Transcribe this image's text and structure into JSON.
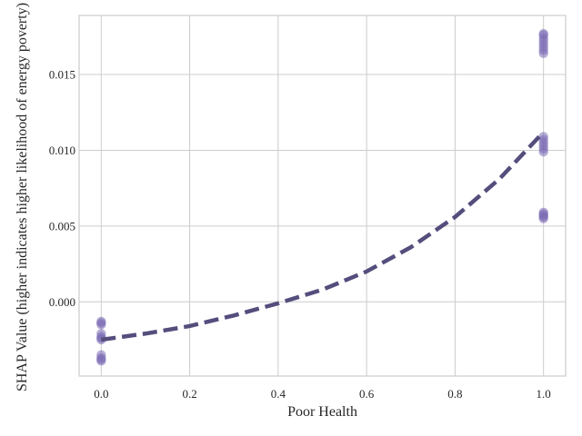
{
  "chart_data": {
    "type": "scatter",
    "title": "",
    "xlabel": "Poor Health",
    "ylabel": "SHAP Value (higher indicates higher likelihood of energy poverty)",
    "xlim": [
      -0.05,
      1.05
    ],
    "ylim": [
      -0.0049,
      0.0189
    ],
    "x_ticks": [
      0.0,
      0.2,
      0.4,
      0.6,
      0.8,
      1.0
    ],
    "x_tick_labels": [
      "0.0",
      "0.2",
      "0.4",
      "0.6",
      "0.8",
      "1.0"
    ],
    "y_ticks": [
      0.0,
      0.005,
      0.01,
      0.015
    ],
    "y_tick_labels": [
      "0.000",
      "0.005",
      "0.010",
      "0.015"
    ],
    "grid": true,
    "legend": "none",
    "series": [
      {
        "kind": "points",
        "color": "#7b6cb5",
        "points": [
          {
            "x": 0.0,
            "y": -0.0014
          },
          {
            "x": 0.0,
            "y": -0.0015
          },
          {
            "x": 0.0,
            "y": -0.0013
          },
          {
            "x": 0.0,
            "y": -0.0021
          },
          {
            "x": 0.0,
            "y": -0.0023
          },
          {
            "x": 0.0,
            "y": -0.0024
          },
          {
            "x": 0.0,
            "y": -0.0025
          },
          {
            "x": 0.0,
            "y": -0.0035
          },
          {
            "x": 0.0,
            "y": -0.0037
          },
          {
            "x": 0.0,
            "y": -0.0038
          },
          {
            "x": 0.0,
            "y": -0.0039
          },
          {
            "x": 1.0,
            "y": 0.0055
          },
          {
            "x": 1.0,
            "y": 0.0056
          },
          {
            "x": 1.0,
            "y": 0.0057
          },
          {
            "x": 1.0,
            "y": 0.0058
          },
          {
            "x": 1.0,
            "y": 0.0059
          },
          {
            "x": 1.0,
            "y": 0.0099
          },
          {
            "x": 1.0,
            "y": 0.0101
          },
          {
            "x": 1.0,
            "y": 0.0103
          },
          {
            "x": 1.0,
            "y": 0.0105
          },
          {
            "x": 1.0,
            "y": 0.0107
          },
          {
            "x": 1.0,
            "y": 0.0109
          },
          {
            "x": 1.0,
            "y": 0.0164
          },
          {
            "x": 1.0,
            "y": 0.0166
          },
          {
            "x": 1.0,
            "y": 0.0168
          },
          {
            "x": 1.0,
            "y": 0.017
          },
          {
            "x": 1.0,
            "y": 0.0172
          },
          {
            "x": 1.0,
            "y": 0.0174
          },
          {
            "x": 1.0,
            "y": 0.0176
          },
          {
            "x": 1.0,
            "y": 0.0177
          }
        ]
      },
      {
        "kind": "trend",
        "color": "#544e7d",
        "style": "dashed",
        "points": [
          {
            "x": 0.0,
            "y": -0.0025
          },
          {
            "x": 0.1,
            "y": -0.0021
          },
          {
            "x": 0.2,
            "y": -0.0016
          },
          {
            "x": 0.3,
            "y": -0.0009
          },
          {
            "x": 0.4,
            "y": -0.0001
          },
          {
            "x": 0.5,
            "y": 0.0008
          },
          {
            "x": 0.6,
            "y": 0.002
          },
          {
            "x": 0.7,
            "y": 0.0036
          },
          {
            "x": 0.8,
            "y": 0.0056
          },
          {
            "x": 0.9,
            "y": 0.0081
          },
          {
            "x": 1.0,
            "y": 0.0112
          }
        ]
      }
    ]
  }
}
